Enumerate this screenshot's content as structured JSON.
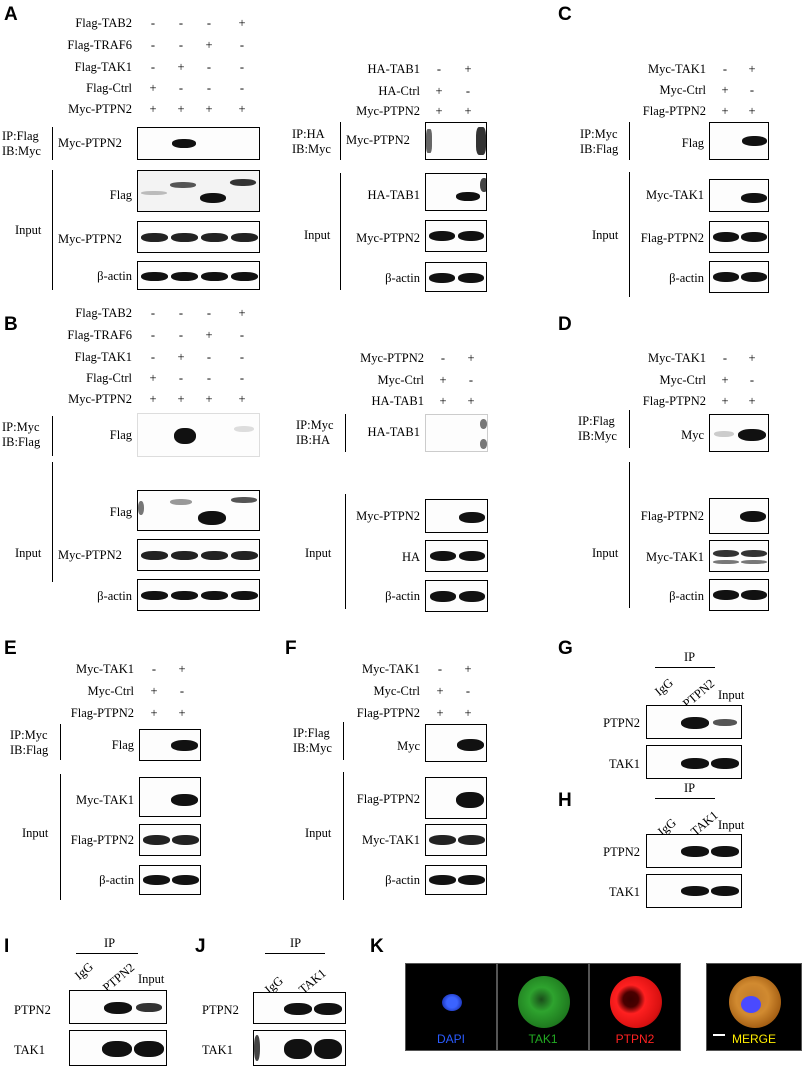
{
  "panels": {
    "A": "A",
    "B": "B",
    "C": "C",
    "D": "D",
    "E": "E",
    "F": "F",
    "G": "G",
    "H": "H",
    "I": "I",
    "J": "J",
    "K": "K"
  },
  "text": {
    "flag_tab2": "Flag-TAB2",
    "flag_traf6": "Flag-TRAF6",
    "flag_tak1": "Flag-TAK1",
    "flag_ctrl": "Flag-Ctrl",
    "myc_ptpn2": "Myc-PTPN2",
    "ha_tab1": "HA-TAB1",
    "ha_ctrl": "HA-Ctrl",
    "myc_tak1": "Myc-TAK1",
    "myc_ctrl": "Myc-Ctrl",
    "flag_ptpn2": "Flag-PTPN2",
    "ip_flag": "IP:Flag",
    "ib_myc": "IB:Myc",
    "ip_ha": "IP:HA",
    "ip_myc": "IP:Myc",
    "ib_flag": "IB:Flag",
    "ib_ha": "IB:HA",
    "flag": "Flag",
    "myc": "Myc",
    "ha": "HA",
    "input": "Input",
    "beta_actin": "β-actin",
    "ip": "IP",
    "igg": "IgG",
    "ptpn2": "PTPN2",
    "tak1": "TAK1",
    "plus": "+",
    "minus": "-"
  },
  "fluorescence": {
    "labels": [
      "DAPI",
      "TAK1",
      "PTPN2",
      "MERGE"
    ],
    "colors": [
      "#2255ff",
      "#22aa22",
      "#ff2222",
      "#ffee00"
    ]
  }
}
